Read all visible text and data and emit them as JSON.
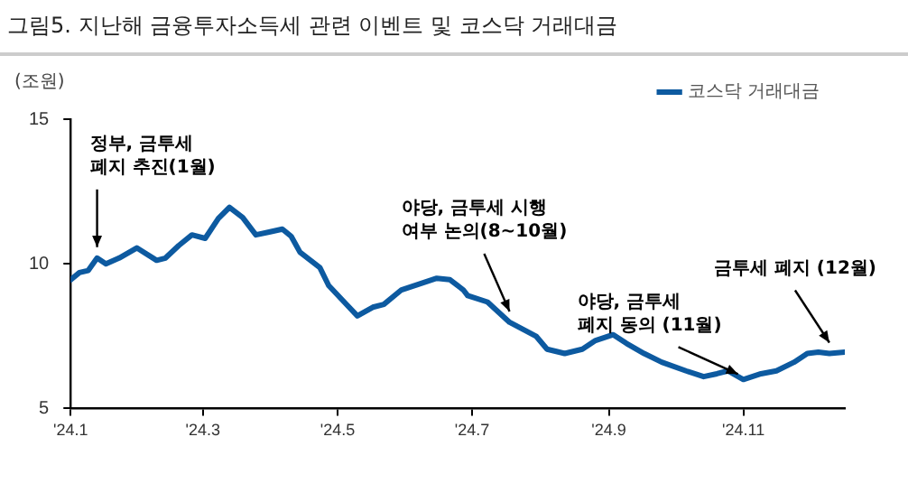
{
  "chart_data": {
    "type": "line",
    "title": "그림5. 지난해 금융투자소득세 관련 이벤트 및 코스닥 거래대금",
    "ylabel": "(조원)",
    "x": [
      "2024-01-01",
      "2024-01-05",
      "2024-01-09",
      "2024-01-13",
      "2024-01-17",
      "2024-01-23",
      "2024-01-31",
      "2024-02-09",
      "2024-02-13",
      "2024-02-19",
      "2024-02-25",
      "2024-03-02",
      "2024-03-08",
      "2024-03-13",
      "2024-03-19",
      "2024-03-25",
      "2024-03-31",
      "2024-04-06",
      "2024-04-10",
      "2024-04-14",
      "2024-04-23",
      "2024-04-27",
      "2024-05-05",
      "2024-05-10",
      "2024-05-17",
      "2024-05-22",
      "2024-05-30",
      "2024-06-07",
      "2024-06-15",
      "2024-06-21",
      "2024-06-27",
      "2024-06-29",
      "2024-07-08",
      "2024-07-18",
      "2024-07-30",
      "2024-08-04",
      "2024-08-12",
      "2024-08-20",
      "2024-08-26",
      "2024-09-03",
      "2024-09-09",
      "2024-09-17",
      "2024-09-25",
      "2024-10-06",
      "2024-10-14",
      "2024-10-20",
      "2024-10-25",
      "2024-11-01",
      "2024-11-09",
      "2024-11-16",
      "2024-11-24",
      "2024-11-30",
      "2024-12-05",
      "2024-12-10",
      "2024-12-17"
    ],
    "series": [
      {
        "name": "코스닥 거래대금",
        "color": "#0d5aa0",
        "values": [
          9.45,
          9.7,
          9.77,
          10.2,
          10.0,
          10.2,
          10.55,
          10.12,
          10.2,
          10.63,
          11.0,
          10.88,
          11.57,
          11.95,
          11.6,
          11.0,
          11.1,
          11.2,
          10.95,
          10.4,
          9.87,
          9.25,
          8.6,
          8.2,
          8.5,
          8.6,
          9.1,
          9.3,
          9.5,
          9.45,
          9.1,
          8.9,
          8.68,
          7.98,
          7.5,
          7.05,
          6.9,
          7.05,
          7.35,
          7.55,
          7.25,
          6.9,
          6.6,
          6.3,
          6.1,
          6.2,
          6.3,
          6.0,
          6.2,
          6.3,
          6.6,
          6.9,
          6.95,
          6.9,
          6.95
        ]
      }
    ],
    "xlim": [
      "2024-01-01",
      "2024-12-17"
    ],
    "xticks": [
      {
        "value": "2024-01-01",
        "label": "'24.1"
      },
      {
        "value": "2024-03-01",
        "label": "'24.3"
      },
      {
        "value": "2024-05-01",
        "label": "'24.5"
      },
      {
        "value": "2024-07-01",
        "label": "'24.7"
      },
      {
        "value": "2024-09-01",
        "label": "'24.9"
      },
      {
        "value": "2024-11-01",
        "label": "'24.11"
      }
    ],
    "ylim": [
      5,
      15
    ],
    "yticks": [
      5,
      10,
      15
    ],
    "grid": false,
    "legend": "top right",
    "marker": "none",
    "line_style": "solid",
    "annotations": [
      {
        "text": "정부, 금투세\n폐지 추진(1월)",
        "x": "2024-01-13",
        "y": 10.2
      },
      {
        "text": "야당, 금투세 시행\n여부 논의(8~10월)",
        "x": "2024-07-18",
        "y": 7.98
      },
      {
        "text": "야당, 금투세\n폐지 동의 (11월)",
        "x": "2024-11-01",
        "y": 6.0
      },
      {
        "text": "금투세 폐지 (12월)",
        "x": "2024-12-10",
        "y": 6.9
      }
    ]
  }
}
